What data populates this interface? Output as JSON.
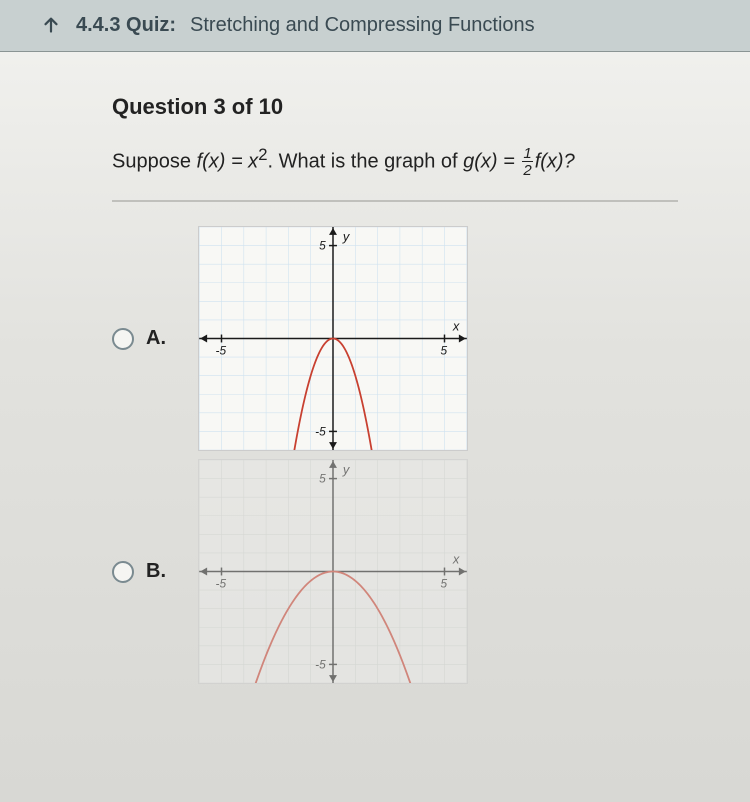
{
  "topbar": {
    "prefix": "4.4.3 Quiz:",
    "title": "Stretching and Compressing Functions"
  },
  "question": {
    "header": "Question 3 of 10",
    "prompt_pre": "Suppose ",
    "prompt_fx": "f(x) = x",
    "prompt_exp": "2",
    "prompt_mid": ". What is the graph of ",
    "prompt_gx": "g(x) = ",
    "frac_num": "1",
    "frac_den": "2",
    "prompt_post": "f(x)?"
  },
  "chart": {
    "xmin": -6,
    "xmax": 6,
    "ymin": -6,
    "ymax": 6,
    "grid_step": 1,
    "axis_tick_major": 5,
    "axis_label_x": "x",
    "axis_label_y": "y",
    "axis_label_5": "5",
    "axis_label_n5": "-5",
    "axis_label_5b": "5",
    "axis_label_n5b": "-5",
    "grid_color": "#cfe2f0",
    "grid_color_dim": "#d0d4d0",
    "axis_color": "#1a1a1a",
    "curve_color": "#c84030",
    "curve_width": 1.8,
    "background": "#f8f8f5",
    "a_coef": -2,
    "b_coef": -0.5
  },
  "options": {
    "a_label": "A.",
    "b_label": "B."
  }
}
